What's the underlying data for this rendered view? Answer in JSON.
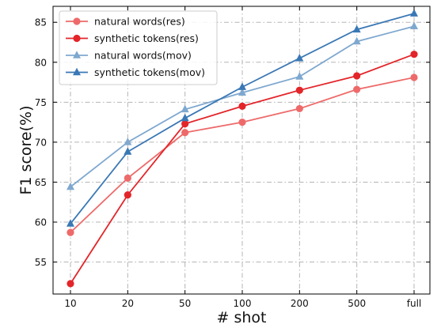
{
  "chart_data": {
    "type": "line",
    "categories": [
      "10",
      "20",
      "50",
      "100",
      "200",
      "500",
      "full"
    ],
    "xlabel": "# shot",
    "ylabel": "F1 score(%)",
    "ylim": [
      51.0,
      87.0
    ],
    "yticks": [
      55,
      60,
      65,
      70,
      75,
      80,
      85
    ],
    "grid": true,
    "legend_position": "top-left",
    "series": [
      {
        "name": "natural words(res)",
        "values": [
          58.7,
          65.5,
          71.2,
          72.5,
          74.2,
          76.6,
          78.1
        ],
        "color": "#ee6a6a",
        "marker": "circle"
      },
      {
        "name": "synthetic tokens(res)",
        "values": [
          52.3,
          63.4,
          72.3,
          74.5,
          76.5,
          78.3,
          81.0
        ],
        "color": "#e3252a",
        "marker": "circle"
      },
      {
        "name": "natural words(mov)",
        "values": [
          64.4,
          70.0,
          74.1,
          76.2,
          78.2,
          82.6,
          84.5
        ],
        "color": "#7fa8cf",
        "marker": "triangle"
      },
      {
        "name": "synthetic tokens(mov)",
        "values": [
          59.8,
          68.8,
          73.0,
          76.9,
          80.5,
          84.1,
          86.1
        ],
        "color": "#3a78b5",
        "marker": "triangle"
      }
    ]
  }
}
